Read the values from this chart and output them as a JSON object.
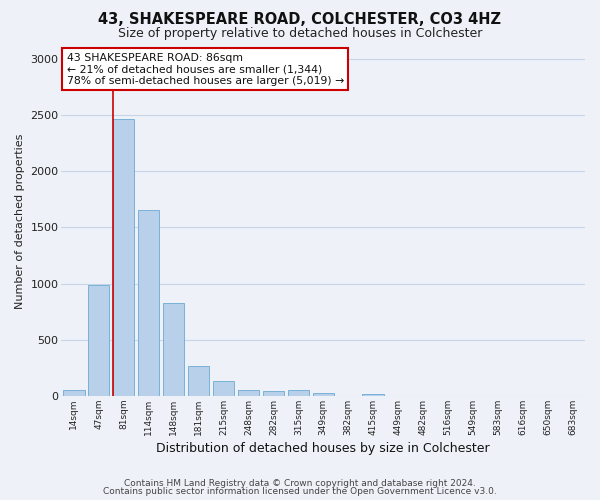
{
  "title": "43, SHAKESPEARE ROAD, COLCHESTER, CO3 4HZ",
  "subtitle": "Size of property relative to detached houses in Colchester",
  "xlabel": "Distribution of detached houses by size in Colchester",
  "ylabel": "Number of detached properties",
  "bar_labels": [
    "14sqm",
    "47sqm",
    "81sqm",
    "114sqm",
    "148sqm",
    "181sqm",
    "215sqm",
    "248sqm",
    "282sqm",
    "315sqm",
    "349sqm",
    "382sqm",
    "415sqm",
    "449sqm",
    "482sqm",
    "516sqm",
    "549sqm",
    "583sqm",
    "616sqm",
    "650sqm",
    "683sqm"
  ],
  "bar_values": [
    55,
    990,
    2460,
    1650,
    830,
    270,
    135,
    50,
    45,
    50,
    25,
    0,
    20,
    0,
    0,
    0,
    0,
    0,
    0,
    0,
    0
  ],
  "bar_color": "#b8d0ea",
  "bar_edge_color": "#6aaad4",
  "property_line_bin": 2,
  "property_sqm": 86,
  "annotation_title": "43 SHAKESPEARE ROAD: 86sqm",
  "annotation_line1": "← 21% of detached houses are smaller (1,344)",
  "annotation_line2": "78% of semi-detached houses are larger (5,019) →",
  "annotation_box_color": "#ffffff",
  "annotation_box_edge": "#cc0000",
  "vline_color": "#cc0000",
  "ylim": [
    0,
    3100
  ],
  "yticks": [
    0,
    500,
    1000,
    1500,
    2000,
    2500,
    3000
  ],
  "grid_color": "#c8d4e8",
  "bg_color": "#eef2f8",
  "footer1": "Contains HM Land Registry data © Crown copyright and database right 2024.",
  "footer2": "Contains public sector information licensed under the Open Government Licence v3.0."
}
